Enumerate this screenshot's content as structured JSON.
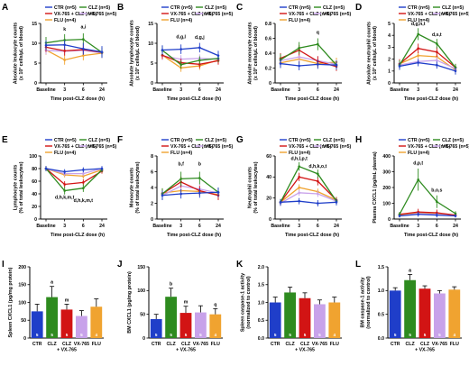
{
  "colors": {
    "CTR": "#1f3ec9",
    "CLZ": "#2e8b1f",
    "VX765CLZ": "#d21414",
    "VX765": "#c8a2ea",
    "FLU": "#f0a330"
  },
  "legend_line": [
    {
      "key": "CTR",
      "label": "CTR (n=5)"
    },
    {
      "key": "CLZ",
      "label": "CLZ (n=5)"
    },
    {
      "key": "VX765CLZ",
      "label": "VX-765 + CLZ (n=5)"
    },
    {
      "key": "VX765",
      "label": "VX-765 (n=5)"
    },
    {
      "key": "FLU",
      "label": "FLU (n=4)"
    }
  ],
  "x_time_label": "Time post-CLZ dose (h)",
  "x_ticks": [
    "Baseline",
    "3",
    "6",
    "24"
  ],
  "bar_categories": [
    "CTR",
    "CLZ",
    "CLZ\n+ VX-765",
    "VX-765",
    "FLU"
  ],
  "chart_data": [
    {
      "panel": "A",
      "type": "line",
      "ylabel": "Absolute leukocyte counts\n(x 10³ cells/µL of blood)",
      "ylim": [
        0,
        15
      ],
      "yticks": [
        0,
        5,
        10,
        15
      ],
      "series": [
        {
          "name": "CTR (n=5)",
          "key": "CTR",
          "values": [
            9.5,
            9.6,
            8.6,
            7.8
          ],
          "err": [
            1.2,
            1.2,
            1.5,
            1.5
          ]
        },
        {
          "name": "CLZ (n=5)",
          "key": "CLZ",
          "values": [
            10.1,
            10.8,
            11.0,
            7.7
          ],
          "err": [
            1.5,
            1.5,
            1.5,
            1.2
          ]
        },
        {
          "name": "VX-765 + CLZ (n=5)",
          "key": "VX765CLZ",
          "values": [
            9.0,
            8.1,
            8.4,
            7.7
          ],
          "err": [
            1.2,
            1.2,
            1.2,
            1.2
          ]
        },
        {
          "name": "VX-765 (n=5)",
          "key": "VX765",
          "values": [
            8.2,
            8.0,
            8.2,
            7.6
          ],
          "err": [
            1.0,
            1.0,
            1.0,
            1.0
          ]
        },
        {
          "name": "FLU (n=4)",
          "key": "FLU",
          "values": [
            8.3,
            5.8,
            6.9,
            7.5
          ],
          "err": [
            1.2,
            1.2,
            1.2,
            1.2
          ]
        }
      ],
      "annotations": [
        {
          "x": 1,
          "y": 13.2,
          "text": "k"
        },
        {
          "x": 2,
          "y": 13.8,
          "text": "a,i"
        }
      ]
    },
    {
      "panel": "B",
      "type": "line",
      "ylabel": "Absolute lymphocyte counts\n(x 10³ cells/µL of blood)",
      "ylim": [
        0,
        15
      ],
      "yticks": [
        0,
        5,
        10,
        15
      ],
      "series": [
        {
          "name": "CTR (n=5)",
          "key": "CTR",
          "values": [
            8.3,
            8.5,
            8.9,
            6.9
          ],
          "err": [
            1.2,
            1.2,
            1.2,
            1.2
          ]
        },
        {
          "name": "CLZ (n=5)",
          "key": "CLZ",
          "values": [
            8.2,
            4.6,
            5.7,
            6.2
          ],
          "err": [
            1.2,
            1.0,
            1.0,
            1.0
          ]
        },
        {
          "name": "VX-765 + CLZ (n=5)",
          "key": "VX765CLZ",
          "values": [
            7.0,
            5.1,
            4.7,
            5.6
          ],
          "err": [
            1.0,
            1.0,
            1.0,
            1.0
          ]
        },
        {
          "name": "VX-765 (n=5)",
          "key": "VX765",
          "values": [
            6.8,
            6.0,
            6.2,
            6.0
          ],
          "err": [
            1.0,
            1.0,
            1.0,
            1.0
          ]
        },
        {
          "name": "FLU (n=4)",
          "key": "FLU",
          "values": [
            7.0,
            3.8,
            4.3,
            5.8
          ],
          "err": [
            1.0,
            1.0,
            1.0,
            1.0
          ]
        }
      ],
      "annotations": [
        {
          "x": 1,
          "y": 11.3,
          "text": "d,g,l"
        },
        {
          "x": 2,
          "y": 11.1,
          "text": "d,g,j"
        }
      ]
    },
    {
      "panel": "C",
      "type": "line",
      "ylabel": "Absolute monocyte counts\n(x 10³ cells/µL of blood)",
      "ylim": [
        0,
        0.8
      ],
      "yticks": [
        0,
        0.2,
        0.4,
        0.6,
        0.8
      ],
      "series": [
        {
          "name": "CTR (n=5)",
          "key": "CTR",
          "values": [
            0.26,
            0.23,
            0.25,
            0.24
          ],
          "err": [
            0.06,
            0.06,
            0.06,
            0.06
          ]
        },
        {
          "name": "CLZ (n=5)",
          "key": "CLZ",
          "values": [
            0.31,
            0.47,
            0.52,
            0.24
          ],
          "err": [
            0.08,
            0.08,
            0.08,
            0.06
          ]
        },
        {
          "name": "VX-765 + CLZ (n=5)",
          "key": "VX765CLZ",
          "values": [
            0.33,
            0.44,
            0.29,
            0.22
          ],
          "err": [
            0.07,
            0.07,
            0.07,
            0.06
          ]
        },
        {
          "name": "VX-765 (n=5)",
          "key": "VX765",
          "values": [
            0.3,
            0.35,
            0.3,
            0.25
          ],
          "err": [
            0.06,
            0.06,
            0.06,
            0.06
          ]
        },
        {
          "name": "FLU (n=4)",
          "key": "FLU",
          "values": [
            0.27,
            0.32,
            0.26,
            0.28
          ],
          "err": [
            0.06,
            0.06,
            0.06,
            0.06
          ]
        }
      ],
      "annotations": [
        {
          "x": 2,
          "y": 0.66,
          "text": "q"
        }
      ]
    },
    {
      "panel": "D",
      "type": "line",
      "ylabel": "Absolute neutrophil counts\n(x 10³ cells/µL of blood)",
      "ylim": [
        0,
        5
      ],
      "yticks": [
        0,
        1,
        2,
        3,
        4,
        5
      ],
      "series": [
        {
          "name": "CTR (n=5)",
          "key": "CTR",
          "values": [
            1.4,
            1.7,
            1.5,
            1.0
          ],
          "err": [
            0.3,
            0.3,
            0.3,
            0.3
          ]
        },
        {
          "name": "CLZ (n=5)",
          "key": "CLZ",
          "values": [
            1.5,
            4.1,
            3.3,
            1.3
          ],
          "err": [
            0.4,
            0.5,
            0.4,
            0.3
          ]
        },
        {
          "name": "VX-765 + CLZ (n=5)",
          "key": "VX765CLZ",
          "values": [
            1.6,
            2.9,
            2.6,
            1.3
          ],
          "err": [
            0.4,
            0.4,
            0.4,
            0.3
          ]
        },
        {
          "name": "VX-765 (n=5)",
          "key": "VX765",
          "values": [
            1.5,
            1.8,
            1.9,
            1.2
          ],
          "err": [
            0.3,
            0.3,
            0.3,
            0.3
          ]
        },
        {
          "name": "FLU (n=4)",
          "key": "FLU",
          "values": [
            1.6,
            2.3,
            2.2,
            1.1
          ],
          "err": [
            0.3,
            0.3,
            0.3,
            0.3
          ]
        }
      ],
      "annotations": [
        {
          "x": 1,
          "y": 4.85,
          "text": "d,g,n,t"
        },
        {
          "x": 2,
          "y": 3.95,
          "text": "d,s,t"
        }
      ]
    },
    {
      "panel": "E",
      "type": "line",
      "ylabel": "Lymphocyte counts\n(% of total leukocytes)",
      "ylim": [
        0,
        100
      ],
      "yticks": [
        0,
        20,
        40,
        60,
        80,
        100
      ],
      "series": [
        {
          "name": "CTR (n=5)",
          "key": "CTR",
          "values": [
            80,
            75,
            78,
            80
          ],
          "err": [
            4,
            4,
            4,
            4
          ]
        },
        {
          "name": "CLZ (n=5)",
          "key": "CLZ",
          "values": [
            80,
            45,
            49,
            78
          ],
          "err": [
            4,
            6,
            6,
            4
          ]
        },
        {
          "name": "VX-765 + CLZ (n=5)",
          "key": "VX765CLZ",
          "values": [
            80,
            55,
            58,
            76
          ],
          "err": [
            4,
            5,
            5,
            4
          ]
        },
        {
          "name": "VX-765 (n=5)",
          "key": "VX765",
          "values": [
            80,
            72,
            72,
            80
          ],
          "err": [
            4,
            4,
            4,
            4
          ]
        },
        {
          "name": "FLU (n=4)",
          "key": "FLU",
          "values": [
            80,
            70,
            68,
            78
          ],
          "err": [
            4,
            4,
            4,
            4
          ]
        }
      ],
      "annotations": [
        {
          "x": 1,
          "y": 32,
          "text": "d,h,k,m,t"
        },
        {
          "x": 2,
          "y": 27,
          "text": "d,h,k,m,t"
        }
      ]
    },
    {
      "panel": "F",
      "type": "line",
      "ylabel": "Monocyte counts\n(% of total leukocytes)",
      "ylim": [
        0,
        8
      ],
      "yticks": [
        0,
        2,
        4,
        6,
        8
      ],
      "series": [
        {
          "name": "CTR (n=5)",
          "key": "CTR",
          "values": [
            3.0,
            3.2,
            3.3,
            3.4
          ],
          "err": [
            0.6,
            0.6,
            0.6,
            0.6
          ]
        },
        {
          "name": "CLZ (n=5)",
          "key": "CLZ",
          "values": [
            3.2,
            5.1,
            5.2,
            3.4
          ],
          "err": [
            0.7,
            0.9,
            0.8,
            0.6
          ]
        },
        {
          "name": "VX-765 + CLZ (n=5)",
          "key": "VX765CLZ",
          "values": [
            3.2,
            4.7,
            3.6,
            3.0
          ],
          "err": [
            0.6,
            0.7,
            0.6,
            0.6
          ]
        },
        {
          "name": "VX-765 (n=5)",
          "key": "VX765",
          "values": [
            3.0,
            4.2,
            3.8,
            3.3
          ],
          "err": [
            0.6,
            0.6,
            0.6,
            0.6
          ]
        },
        {
          "name": "FLU (n=4)",
          "key": "FLU",
          "values": [
            3.3,
            3.6,
            3.5,
            3.1
          ],
          "err": [
            0.6,
            0.6,
            0.6,
            0.6
          ]
        }
      ],
      "annotations": [
        {
          "x": 1,
          "y": 6.8,
          "text": "b,f"
        },
        {
          "x": 2,
          "y": 6.8,
          "text": "b"
        }
      ]
    },
    {
      "panel": "G",
      "type": "line",
      "ylabel": "Neutrophil counts\n(% of total leukocytes)",
      "ylim": [
        0,
        60
      ],
      "yticks": [
        0,
        20,
        40,
        60
      ],
      "series": [
        {
          "name": "CTR (n=5)",
          "key": "CTR",
          "values": [
            16,
            17,
            15,
            16
          ],
          "err": [
            3,
            3,
            3,
            3
          ]
        },
        {
          "name": "CLZ (n=5)",
          "key": "CLZ",
          "values": [
            16,
            50,
            43,
            17
          ],
          "err": [
            3,
            4,
            4,
            3
          ]
        },
        {
          "name": "VX-765 + CLZ (n=5)",
          "key": "VX765CLZ",
          "values": [
            16,
            40,
            36,
            18
          ],
          "err": [
            3,
            4,
            4,
            3
          ]
        },
        {
          "name": "VX-765 (n=5)",
          "key": "VX765",
          "values": [
            15,
            25,
            24,
            17
          ],
          "err": [
            3,
            3,
            3,
            3
          ]
        },
        {
          "name": "FLU (n=4)",
          "key": "FLU",
          "values": [
            16,
            30,
            26,
            18
          ],
          "err": [
            3,
            3,
            3,
            3
          ]
        }
      ],
      "annotations": [
        {
          "x": 1,
          "y": 56,
          "text": "d,h,l,p,t"
        },
        {
          "x": 2,
          "y": 49,
          "text": "d,h,k,o,t"
        }
      ]
    },
    {
      "panel": "H",
      "type": "line",
      "ylabel": "Plasma CXCL1 (pg/mL plasma)",
      "ylim": [
        0,
        400
      ],
      "yticks": [
        0,
        100,
        200,
        300,
        400
      ],
      "series": [
        {
          "name": "CTR (n=5)",
          "key": "CTR",
          "values": [
            20,
            30,
            25,
            20
          ],
          "err": [
            10,
            15,
            15,
            10
          ]
        },
        {
          "name": "CLZ (n=5)",
          "key": "CLZ",
          "values": [
            30,
            250,
            110,
            35
          ],
          "err": [
            15,
            70,
            40,
            15
          ]
        },
        {
          "name": "VX-765 + CLZ (n=5)",
          "key": "VX765CLZ",
          "values": [
            30,
            45,
            40,
            25
          ],
          "err": [
            10,
            20,
            20,
            10
          ]
        },
        {
          "name": "VX-765 (n=5)",
          "key": "VX765",
          "values": [
            20,
            35,
            30,
            20
          ],
          "err": [
            10,
            15,
            15,
            10
          ]
        },
        {
          "name": "FLU (n=4)",
          "key": "FLU",
          "values": [
            25,
            40,
            35,
            25
          ],
          "err": [
            10,
            15,
            15,
            10
          ]
        }
      ],
      "annotations": [
        {
          "x": 1,
          "y": 345,
          "text": "d,p,t"
        },
        {
          "x": 2,
          "y": 175,
          "text": "b,o,s"
        }
      ]
    },
    {
      "panel": "I",
      "type": "bar",
      "ylabel": "Spleen CXCL1 (pg/mg protein)",
      "ylim": [
        0,
        200
      ],
      "yticks": [
        0,
        50,
        100,
        150,
        200
      ],
      "values": [
        75,
        115,
        80,
        62,
        88
      ],
      "err": [
        20,
        30,
        15,
        15,
        22
      ],
      "n": [
        5,
        5,
        5,
        5,
        4
      ],
      "annotations": [
        "",
        "a",
        "m",
        "",
        ""
      ]
    },
    {
      "panel": "J",
      "type": "bar",
      "ylabel": "BM CXCL1 (pg/mg protein)",
      "ylim": [
        0,
        150
      ],
      "yticks": [
        0,
        50,
        100,
        150
      ],
      "values": [
        40,
        87,
        53,
        54,
        50
      ],
      "err": [
        10,
        18,
        14,
        14,
        12
      ],
      "n": [
        5,
        5,
        5,
        5,
        4
      ],
      "annotations": [
        "",
        "b",
        "m",
        "",
        "q"
      ]
    },
    {
      "panel": "K",
      "type": "bar",
      "ylabel": "Spleen caspase-1 activity\n(normalized to control)",
      "ylim": [
        0,
        2
      ],
      "yticks": [
        0.0,
        0.5,
        1.0,
        1.5,
        2.0
      ],
      "values": [
        1.0,
        1.28,
        1.12,
        0.95,
        1.0
      ],
      "err": [
        0.15,
        0.15,
        0.15,
        0.12,
        0.15
      ],
      "n": [
        5,
        5,
        5,
        5,
        4
      ],
      "annotations": [
        "",
        "",
        "",
        "",
        ""
      ]
    },
    {
      "panel": "L",
      "type": "bar",
      "ylabel": "BM caspase-1 activity\n(normalized to control)",
      "ylim": [
        0,
        1.5
      ],
      "yticks": [
        0.0,
        0.5,
        1.0,
        1.5
      ],
      "values": [
        1.0,
        1.22,
        1.04,
        0.94,
        1.02
      ],
      "err": [
        0.06,
        0.12,
        0.06,
        0.06,
        0.06
      ],
      "n": [
        5,
        5,
        5,
        5,
        4
      ],
      "annotations": [
        "",
        "a",
        "",
        "",
        ""
      ]
    }
  ]
}
